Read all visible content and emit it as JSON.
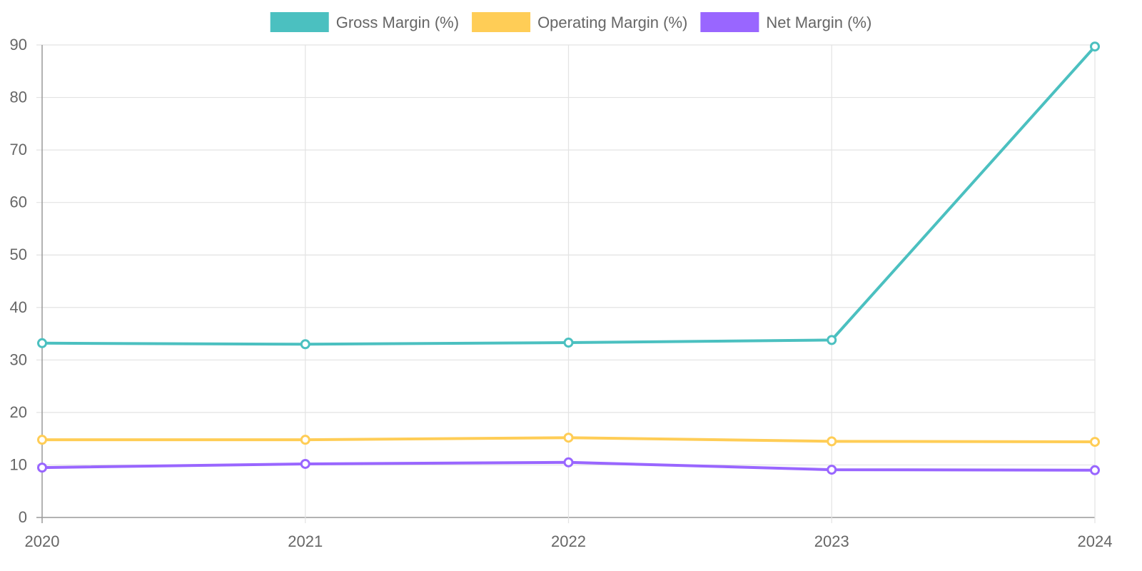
{
  "chart_data": {
    "type": "line",
    "title": "",
    "xlabel": "",
    "ylabel": "",
    "categories": [
      "2020",
      "2021",
      "2022",
      "2023",
      "2024"
    ],
    "ylim": [
      0,
      90
    ],
    "yticks": [
      0,
      10,
      20,
      30,
      40,
      50,
      60,
      70,
      80,
      90
    ],
    "grid": true,
    "legend_position": "top-center",
    "series": [
      {
        "name": "Gross Margin (%)",
        "color": "#4BC0C0",
        "values": [
          33.2,
          33.0,
          33.3,
          33.8,
          89.7
        ]
      },
      {
        "name": "Operating Margin (%)",
        "color": "#FFCD56",
        "values": [
          14.8,
          14.8,
          15.2,
          14.5,
          14.4
        ]
      },
      {
        "name": "Net Margin (%)",
        "color": "#9966FF",
        "values": [
          9.5,
          10.2,
          10.5,
          9.1,
          9.0
        ]
      }
    ]
  }
}
